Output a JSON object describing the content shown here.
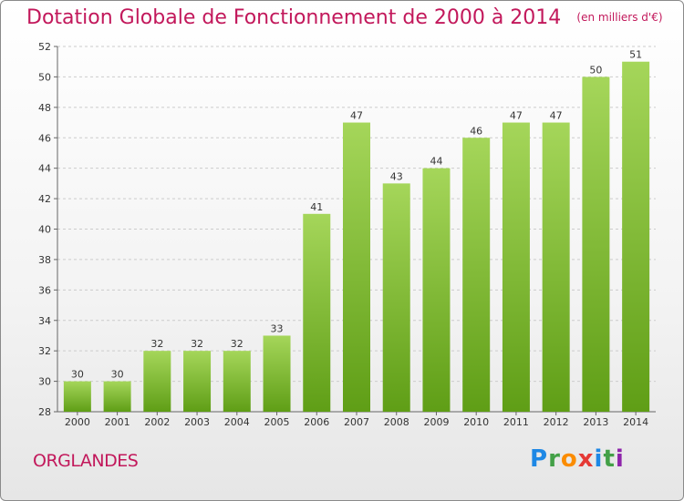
{
  "title": "Dotation Globale de Fonctionnement de 2000 à 2014",
  "unit": "(en milliers d'€)",
  "commune": "ORGLANDES",
  "logo": {
    "letters": [
      "P",
      "r",
      "o",
      "x",
      "i",
      "t",
      "i"
    ],
    "colors": [
      "#1e88e5",
      "#43a047",
      "#fb8c00",
      "#e53935",
      "#1e88e5",
      "#43a047",
      "#8e24aa"
    ]
  },
  "colors": {
    "title": "#c2185b",
    "bar_top": "#a5d65a",
    "bar_bottom": "#5f9e16",
    "grid": "#cccccc"
  },
  "chart_data": {
    "type": "bar",
    "title": "Dotation Globale de Fonctionnement de 2000 à 2014",
    "categories": [
      "2000",
      "2001",
      "2002",
      "2003",
      "2004",
      "2005",
      "2006",
      "2007",
      "2008",
      "2009",
      "2010",
      "2011",
      "2012",
      "2013",
      "2014"
    ],
    "values": [
      30,
      30,
      32,
      32,
      32,
      33,
      41,
      47,
      43,
      44,
      46,
      47,
      47,
      50,
      51
    ],
    "ylim": [
      28,
      52
    ],
    "yticks": [
      28,
      30,
      32,
      34,
      36,
      38,
      40,
      42,
      44,
      46,
      48,
      50,
      52
    ],
    "grid": true
  }
}
